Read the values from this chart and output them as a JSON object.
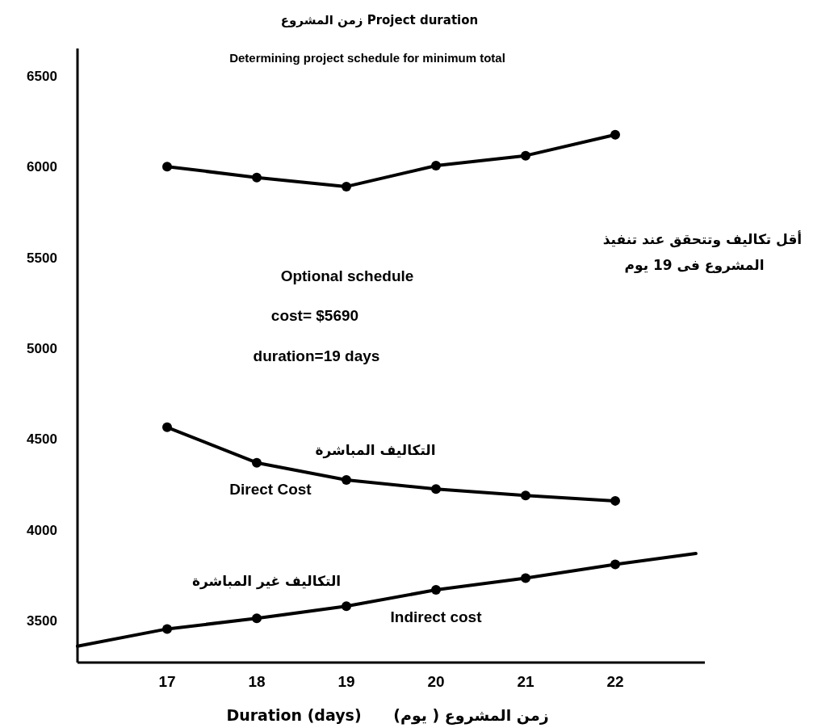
{
  "chart_data": {
    "type": "line",
    "title": "زمن المشروع Project duration",
    "subtitle": "Determining project schedule for minimum total",
    "xlabel": "Duration (days)      زمن المشروع ( يوم)",
    "xlim": [
      16,
      23
    ],
    "xticks": [
      17,
      18,
      19,
      20,
      21,
      22
    ],
    "ylim": [
      3270,
      6650
    ],
    "yticks": [
      3500,
      4000,
      4500,
      5000,
      5500,
      6000,
      6500
    ],
    "marker": "circle",
    "line_style": "solid",
    "series": [
      {
        "color": "#000000",
        "x": [
          17,
          18,
          19,
          20,
          21,
          22
        ],
        "values": [
          6000,
          5940,
          5890,
          6005,
          6060,
          6175
        ]
      },
      {
        "name": "Direct Cost",
        "color": "#000000",
        "x": [
          17,
          18,
          19,
          20,
          21,
          22
        ],
        "values": [
          4565,
          4370,
          4275,
          4225,
          4190,
          4160
        ]
      },
      {
        "name": "Indirect cost",
        "color": "#000000",
        "x": [
          16,
          17,
          18,
          19,
          20,
          21,
          22,
          22.9
        ],
        "values": [
          3360,
          3455,
          3513,
          3580,
          3670,
          3735,
          3810,
          3870
        ]
      }
    ],
    "annotations": [
      "Optional schedule",
      "cost= $5690",
      "duration=19 days",
      "أقل تكاليف وتتحقق عند تنفيذ المشروع فى 19 يوم",
      "التكاليف المباشرة",
      "التكاليف غير المباشرة"
    ]
  }
}
